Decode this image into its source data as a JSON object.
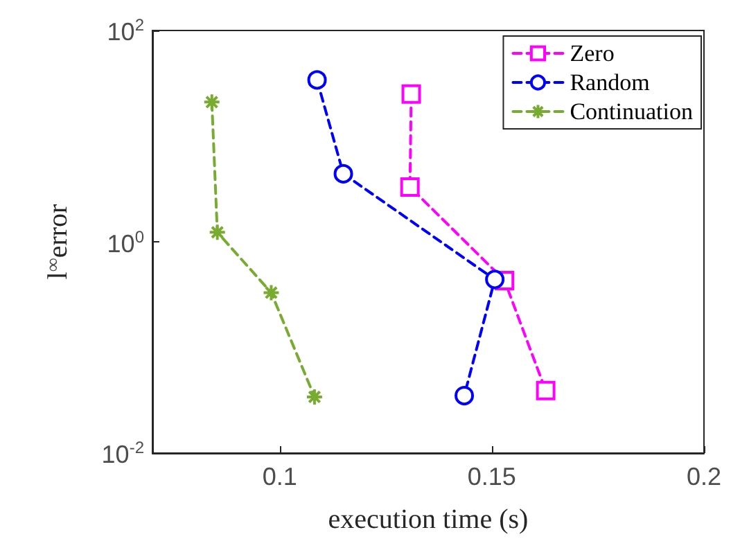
{
  "chart_data": {
    "type": "line",
    "xlabel": "execution time (s)",
    "ylabel": "l$^{∞}$error",
    "log": "y",
    "xlim": [
      0.07,
      0.2
    ],
    "xticks": [
      0.1,
      0.15,
      0.2
    ],
    "ylim": [
      0.01,
      100
    ],
    "yticks": [
      {
        "value": 0.01,
        "label": "10$^{-2}$"
      },
      {
        "value": 1,
        "label": "10$^{0}$"
      },
      {
        "value": 100,
        "label": "10$^{2}$"
      }
    ],
    "grid": false,
    "legend": "top right",
    "line_style": "dashed",
    "series": [
      {
        "name": "Zero",
        "color": "#ff00ff",
        "marker": "square",
        "x": [
          0.131,
          0.1307,
          0.153,
          0.1627
        ],
        "values": [
          25,
          3.3,
          0.43,
          0.039
        ]
      },
      {
        "name": "Random",
        "color": "#0000ff",
        "marker": "circle",
        "x": [
          0.1088,
          0.115,
          0.1507,
          0.1435
        ],
        "values": [
          34,
          4.4,
          0.44,
          0.035
        ]
      },
      {
        "name": "Continuation",
        "color": "#77ac30",
        "marker": "cross",
        "x": [
          0.084,
          0.0853,
          0.098,
          0.1082
        ],
        "values": [
          21,
          1.23,
          0.33,
          0.034
        ]
      }
    ]
  }
}
